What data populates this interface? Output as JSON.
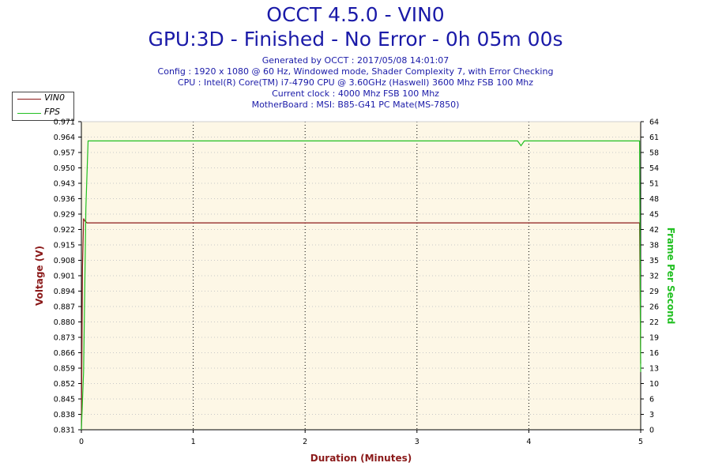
{
  "header": {
    "title_line1": "OCCT 4.5.0 - VIN0",
    "title_line2": "GPU:3D - Finished - No Error - 0h 05m 00s",
    "info": [
      "Generated by OCCT : 2017/05/08 14:01:07",
      "Config : 1920 x 1080 @ 60 Hz, Windowed mode, Shader Complexity 7, with Error Checking",
      "CPU : Intel(R) Core(TM) i7-4790 CPU @ 3.60GHz (Haswell) 3600 Mhz FSB 100 Mhz",
      "Current clock : 4000 Mhz FSB 100 Mhz",
      "MotherBoard : MSI: B85-G41 PC Mate(MS-7850)"
    ]
  },
  "legend": [
    {
      "name": "VIN0",
      "color": "#8b1a1a"
    },
    {
      "name": "FPS",
      "color": "#22c022"
    }
  ],
  "chart_data": {
    "type": "line",
    "xlabel": "Duration (Minutes)",
    "ylabel_left": "Voltage (V)",
    "ylabel_right": "Frame Per Second",
    "xlim": [
      0,
      5
    ],
    "ylim_left": [
      0.831,
      0.971
    ],
    "ylim_right": [
      0,
      64
    ],
    "x_ticks": [
      "0",
      "1",
      "2",
      "3",
      "4",
      "5"
    ],
    "y_left_ticks": [
      "0.831",
      "0.838",
      "0.845",
      "0.852",
      "0.859",
      "0.866",
      "0.873",
      "0.880",
      "0.887",
      "0.894",
      "0.901",
      "0.908",
      "0.915",
      "0.922",
      "0.929",
      "0.936",
      "0.943",
      "0.950",
      "0.957",
      "0.964",
      "0.971"
    ],
    "y_right_ticks": [
      "0",
      "3",
      "6",
      "10",
      "13",
      "16",
      "19",
      "22",
      "26",
      "29",
      "32",
      "35",
      "38",
      "42",
      "45",
      "48",
      "51",
      "54",
      "58",
      "61",
      "64"
    ],
    "grid": true,
    "legend_position": "top-left",
    "colors": {
      "left_axis": "#8b1a1a",
      "right_axis": "#22c022",
      "plot_bg": "#fdf7e6",
      "title": "#1a1aa8"
    },
    "series": [
      {
        "name": "VIN0",
        "axis": "left",
        "color": "#8b1a1a",
        "x": [
          0,
          0.01,
          0.02,
          0.03,
          0.05,
          1,
          2,
          3,
          4,
          4.99,
          5
        ],
        "y": [
          0.831,
          0.905,
          0.927,
          0.926,
          0.925,
          0.925,
          0.925,
          0.925,
          0.925,
          0.925,
          0.861
        ]
      },
      {
        "name": "FPS",
        "axis": "right",
        "color": "#22c022",
        "x": [
          0,
          0.02,
          0.04,
          0.06,
          0.2,
          1,
          2,
          2.6,
          3,
          3.9,
          3.93,
          3.96,
          4,
          4.99,
          5
        ],
        "y": [
          0,
          12,
          46,
          60,
          60,
          60,
          60,
          60,
          60,
          60,
          59,
          60,
          60,
          60,
          12
        ]
      }
    ]
  }
}
